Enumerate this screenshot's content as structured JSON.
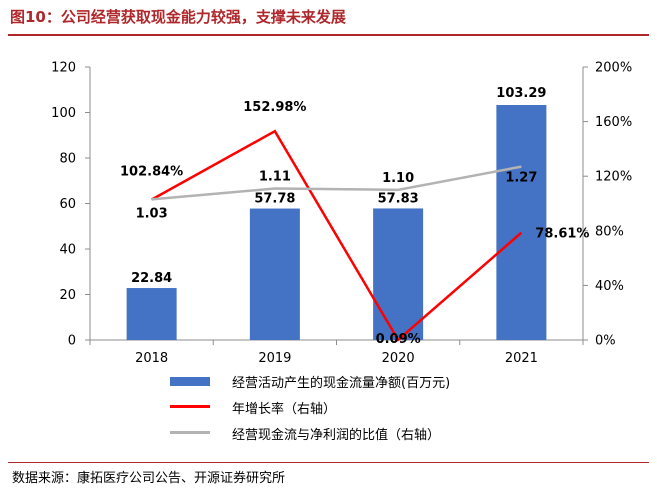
{
  "header": {
    "title": "图10：公司经营获取现金能力较强，支撑未来发展"
  },
  "footer": {
    "source": "数据来源：康拓医疗公司公告、开源证券研究所"
  },
  "chart_data": {
    "type": "bar",
    "categories": [
      "2018",
      "2019",
      "2020",
      "2021"
    ],
    "left_axis": {
      "ylim": [
        0,
        120
      ],
      "ticks": [
        "0",
        "20",
        "40",
        "60",
        "80",
        "100",
        "120"
      ]
    },
    "right_axis": {
      "ylim": [
        0,
        200
      ],
      "ticks": [
        "0%",
        "40%",
        "80%",
        "120%",
        "160%",
        "200%"
      ]
    },
    "series": [
      {
        "name": "经营活动产生的现金流量净额(百万元)",
        "kind": "bar",
        "axis": "left",
        "color": "#4472c4",
        "values": [
          22.84,
          57.78,
          57.83,
          103.29
        ],
        "labels": [
          "22.84",
          "57.78",
          "57.83",
          "103.29"
        ]
      },
      {
        "name": "年增长率（右轴）",
        "kind": "line",
        "axis": "right",
        "color": "#ff0000",
        "values": [
          102.84,
          152.98,
          0.09,
          78.61
        ],
        "labels": [
          "102.84%",
          "152.98%",
          "0.09%",
          "78.61%"
        ]
      },
      {
        "name": "经营现金流与净利润的比值（右轴）",
        "kind": "line",
        "axis": "right",
        "color": "#b3b3b3",
        "values": [
          1.03,
          1.11,
          1.1,
          1.27
        ],
        "labels": [
          "1.03",
          "1.11",
          "1.10",
          "1.27"
        ]
      }
    ],
    "legend_position": "bottom",
    "grid": false
  }
}
